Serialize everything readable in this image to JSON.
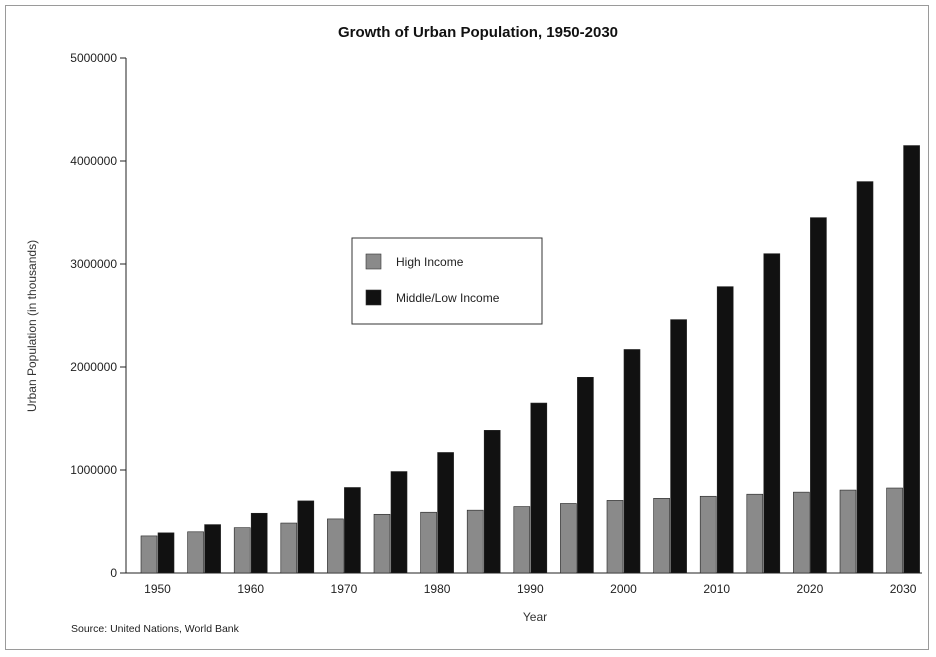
{
  "chart_data": {
    "type": "bar",
    "title": "Growth of Urban Population, 1950-2030",
    "xlabel": "Year",
    "ylabel": "Urban Population (in thousands)",
    "ylim": [
      0,
      5000000
    ],
    "yticks": [
      "0",
      "1000000",
      "2000000",
      "3000000",
      "4000000",
      "5000000"
    ],
    "categories": [
      "1950",
      "1955",
      "1960",
      "1965",
      "1970",
      "1975",
      "1980",
      "1985",
      "1990",
      "1995",
      "2000",
      "2005",
      "2010",
      "2015",
      "2020",
      "2025",
      "2030"
    ],
    "xtick_labels": [
      "1950",
      "1960",
      "1970",
      "1980",
      "1990",
      "2000",
      "2010",
      "2020",
      "2030"
    ],
    "series": [
      {
        "name": "High Income",
        "color": "#8a8a8a",
        "values": [
          360000,
          400000,
          440000,
          485000,
          525000,
          570000,
          590000,
          610000,
          645000,
          675000,
          705000,
          725000,
          745000,
          765000,
          785000,
          805000,
          825000
        ]
      },
      {
        "name": "Middle/Low Income",
        "color": "#111111",
        "values": [
          390000,
          470000,
          580000,
          700000,
          830000,
          985000,
          1170000,
          1385000,
          1650000,
          1900000,
          2170000,
          2460000,
          2780000,
          3100000,
          3450000,
          3800000,
          4150000
        ]
      }
    ],
    "legend_position": "center-left",
    "grid": false
  },
  "source": "Source: United Nations, World Bank"
}
